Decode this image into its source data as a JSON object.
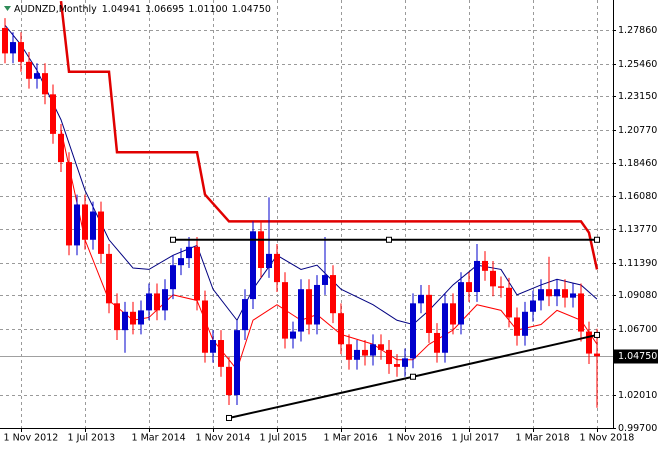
{
  "chart_data": {
    "type": "candlestick",
    "symbol": "AUDNZD,Monthly",
    "ohlc_labels": [
      "1.04941",
      "1.06695",
      "1.01100",
      "1.04750"
    ],
    "up_color": "#0000cc",
    "down_color": "#ff0000",
    "grid": true,
    "x": [
      "2012-09",
      "2012-10",
      "2012-11",
      "2012-12",
      "2013-01",
      "2013-02",
      "2013-03",
      "2013-04",
      "2013-05",
      "2013-06",
      "2013-07",
      "2013-08",
      "2013-09",
      "2013-10",
      "2013-11",
      "2013-12",
      "2014-01",
      "2014-02",
      "2014-03",
      "2014-04",
      "2014-05",
      "2014-06",
      "2014-07",
      "2014-08",
      "2014-09",
      "2014-10",
      "2014-11",
      "2014-12",
      "2015-01",
      "2015-02",
      "2015-03",
      "2015-04",
      "2015-05",
      "2015-06",
      "2015-07",
      "2015-08",
      "2015-09",
      "2015-10",
      "2015-11",
      "2015-12",
      "2016-01",
      "2016-02",
      "2016-03",
      "2016-04",
      "2016-05",
      "2016-06",
      "2016-07",
      "2016-08",
      "2016-09",
      "2016-10",
      "2016-11",
      "2016-12",
      "2017-01",
      "2017-02",
      "2017-03",
      "2017-04",
      "2017-05",
      "2017-06",
      "2017-07",
      "2017-08",
      "2017-09",
      "2017-10",
      "2017-11",
      "2017-12",
      "2018-01",
      "2018-02",
      "2018-03",
      "2018-04",
      "2018-05",
      "2018-06",
      "2018-07",
      "2018-08",
      "2018-09",
      "2018-10",
      "2018-11"
    ],
    "open": [
      1.28,
      1.262,
      1.27,
      1.256,
      1.244,
      1.248,
      1.233,
      1.205,
      1.185,
      1.126,
      1.155,
      1.13,
      1.15,
      1.12,
      1.085,
      1.066,
      1.079,
      1.07,
      1.08,
      1.092,
      1.08,
      1.095,
      1.112,
      1.117,
      1.125,
      1.087,
      1.05,
      1.059,
      1.04,
      1.02,
      1.066,
      1.088,
      1.136,
      1.11,
      1.12,
      1.1,
      1.06,
      1.065,
      1.095,
      1.07,
      1.098,
      1.105,
      1.078,
      1.056,
      1.045,
      1.052,
      1.048,
      1.056,
      1.052,
      1.042,
      1.04,
      1.046,
      1.085,
      1.091,
      1.064,
      1.05,
      1.085,
      1.07,
      1.1,
      1.093,
      1.115,
      1.108,
      1.097,
      1.096,
      1.075,
      1.062,
      1.079,
      1.087,
      1.095,
      1.09,
      1.095,
      1.089,
      1.092,
      1.065,
      1.04941
    ],
    "high": [
      1.287,
      1.277,
      1.277,
      1.263,
      1.255,
      1.255,
      1.24,
      1.212,
      1.192,
      1.162,
      1.162,
      1.157,
      1.157,
      1.127,
      1.092,
      1.086,
      1.086,
      1.087,
      1.099,
      1.099,
      1.102,
      1.119,
      1.124,
      1.132,
      1.132,
      1.094,
      1.066,
      1.066,
      1.047,
      1.073,
      1.095,
      1.143,
      1.143,
      1.16,
      1.127,
      1.107,
      1.072,
      1.102,
      1.102,
      1.105,
      1.132,
      1.112,
      1.085,
      1.063,
      1.059,
      1.059,
      1.063,
      1.063,
      1.059,
      1.049,
      1.053,
      1.092,
      1.098,
      1.098,
      1.071,
      1.092,
      1.092,
      1.107,
      1.107,
      1.127,
      1.122,
      1.115,
      1.104,
      1.103,
      1.082,
      1.086,
      1.094,
      1.102,
      1.118,
      1.102,
      1.102,
      1.099,
      1.099,
      1.072,
      1.06695
    ],
    "low": [
      1.255,
      1.255,
      1.249,
      1.237,
      1.237,
      1.226,
      1.198,
      1.178,
      1.119,
      1.119,
      1.123,
      1.123,
      1.113,
      1.078,
      1.059,
      1.05,
      1.063,
      1.063,
      1.073,
      1.073,
      1.073,
      1.088,
      1.105,
      1.11,
      1.08,
      1.043,
      1.043,
      1.033,
      1.013,
      1.013,
      1.059,
      1.081,
      1.103,
      1.103,
      1.093,
      1.053,
      1.053,
      1.058,
      1.063,
      1.063,
      1.091,
      1.071,
      1.049,
      1.038,
      1.038,
      1.041,
      1.041,
      1.045,
      1.035,
      1.033,
      1.033,
      1.039,
      1.078,
      1.057,
      1.043,
      1.043,
      1.063,
      1.063,
      1.086,
      1.086,
      1.101,
      1.09,
      1.089,
      1.068,
      1.055,
      1.055,
      1.072,
      1.08,
      1.083,
      1.083,
      1.082,
      1.082,
      1.058,
      1.042,
      1.011
    ],
    "close": [
      1.262,
      1.27,
      1.256,
      1.244,
      1.248,
      1.233,
      1.205,
      1.185,
      1.126,
      1.155,
      1.13,
      1.15,
      1.12,
      1.085,
      1.066,
      1.079,
      1.07,
      1.08,
      1.092,
      1.08,
      1.095,
      1.112,
      1.117,
      1.125,
      1.087,
      1.05,
      1.059,
      1.04,
      1.02,
      1.066,
      1.088,
      1.136,
      1.11,
      1.12,
      1.1,
      1.06,
      1.065,
      1.095,
      1.07,
      1.098,
      1.105,
      1.078,
      1.056,
      1.045,
      1.052,
      1.048,
      1.056,
      1.052,
      1.042,
      1.04,
      1.046,
      1.085,
      1.091,
      1.064,
      1.05,
      1.085,
      1.07,
      1.1,
      1.093,
      1.115,
      1.108,
      1.097,
      1.096,
      1.075,
      1.062,
      1.079,
      1.087,
      1.095,
      1.09,
      1.095,
      1.089,
      1.092,
      1.065,
      1.04941,
      1.0475
    ],
    "lines": [
      {
        "color": "#e00000",
        "width": 2.5,
        "x": [
          "2013-04",
          "2013-05",
          "2013-10",
          "2013-11",
          "2014-09",
          "2014-10",
          "2015-01",
          "2018-09",
          "2018-10",
          "2018-11"
        ],
        "values": [
          1.299,
          1.249,
          1.249,
          1.192,
          1.192,
          1.162,
          1.143,
          1.143,
          1.135,
          1.109
        ]
      },
      {
        "color": "#000080",
        "width": 1,
        "x": [
          "2012-09",
          "2012-11",
          "2013-01",
          "2013-04",
          "2013-07",
          "2013-10",
          "2014-01",
          "2014-03",
          "2014-06",
          "2014-09",
          "2014-11",
          "2015-02",
          "2015-04",
          "2015-07",
          "2015-10",
          "2015-12",
          "2016-03",
          "2016-07",
          "2016-10",
          "2016-12",
          "2017-02",
          "2017-05",
          "2017-08",
          "2017-11",
          "2018-01",
          "2018-04",
          "2018-06",
          "2018-09",
          "2018-11"
        ],
        "values": [
          1.282,
          1.268,
          1.25,
          1.215,
          1.165,
          1.13,
          1.11,
          1.109,
          1.119,
          1.126,
          1.095,
          1.073,
          1.095,
          1.119,
          1.109,
          1.112,
          1.095,
          1.084,
          1.073,
          1.07,
          1.08,
          1.098,
          1.112,
          1.109,
          1.091,
          1.098,
          1.102,
          1.098,
          1.088
        ]
      },
      {
        "color": "#ff0000",
        "width": 1,
        "x": [
          "2013-04",
          "2013-07",
          "2013-10",
          "2014-01",
          "2014-03",
          "2014-06",
          "2014-09",
          "2014-11",
          "2015-02",
          "2015-04",
          "2015-07",
          "2015-10",
          "2015-12",
          "2016-03",
          "2016-07",
          "2016-10",
          "2016-12",
          "2017-02",
          "2017-05",
          "2017-08",
          "2017-11",
          "2018-01",
          "2018-04",
          "2018-06",
          "2018-09",
          "2018-11"
        ],
        "values": [
          1.208,
          1.13,
          1.087,
          1.073,
          1.075,
          1.091,
          1.087,
          1.059,
          1.038,
          1.073,
          1.084,
          1.073,
          1.077,
          1.063,
          1.056,
          1.045,
          1.045,
          1.056,
          1.066,
          1.084,
          1.08,
          1.066,
          1.07,
          1.08,
          1.073,
          1.056
        ]
      }
    ],
    "trendlines": [
      {
        "color": "#000000",
        "x": [
          "2014-06",
          "2016-09",
          "2018-11"
        ],
        "values": [
          1.13,
          1.13,
          1.13
        ]
      },
      {
        "color": "#000000",
        "x": [
          "2015-01",
          "2016-12",
          "2018-11"
        ],
        "values": [
          1.0038,
          1.033,
          1.0626
        ]
      }
    ],
    "current_price": {
      "value": 1.0475,
      "label": "1.04750"
    },
    "ylim": [
      0.9967,
      1.2998
    ],
    "yticks": [
      {
        "value": 1.2786,
        "label": "1.27860"
      },
      {
        "value": 1.2546,
        "label": "1.25460"
      },
      {
        "value": 1.2315,
        "label": "1.23150"
      },
      {
        "value": 1.2077,
        "label": "1.20770"
      },
      {
        "value": 1.1846,
        "label": "1.18460"
      },
      {
        "value": 1.1608,
        "label": "1.16080"
      },
      {
        "value": 1.1377,
        "label": "1.13770"
      },
      {
        "value": 1.1139,
        "label": "1.11390"
      },
      {
        "value": 1.0908,
        "label": "1.09080"
      },
      {
        "value": 1.067,
        "label": "1.06700"
      },
      {
        "value": 1.0201,
        "label": "1.02010"
      },
      {
        "value": 0.997,
        "label": "0.99700"
      }
    ],
    "xticks": [
      {
        "value": "2012-11",
        "label": "1 Nov 2012"
      },
      {
        "value": "2013-07",
        "label": "1 Jul 2013"
      },
      {
        "value": "2014-03",
        "label": "1 Mar 2014"
      },
      {
        "value": "2014-11",
        "label": "1 Nov 2014"
      },
      {
        "value": "2015-07",
        "label": "1 Jul 2015"
      },
      {
        "value": "2016-03",
        "label": "1 Mar 2016"
      },
      {
        "value": "2016-11",
        "label": "1 Nov 2016"
      },
      {
        "value": "2017-07",
        "label": "1 Jul 2017"
      },
      {
        "value": "2018-03",
        "label": "1 Mar 2018"
      },
      {
        "value": "2018-11",
        "label": "1 Nov 2018"
      }
    ]
  }
}
